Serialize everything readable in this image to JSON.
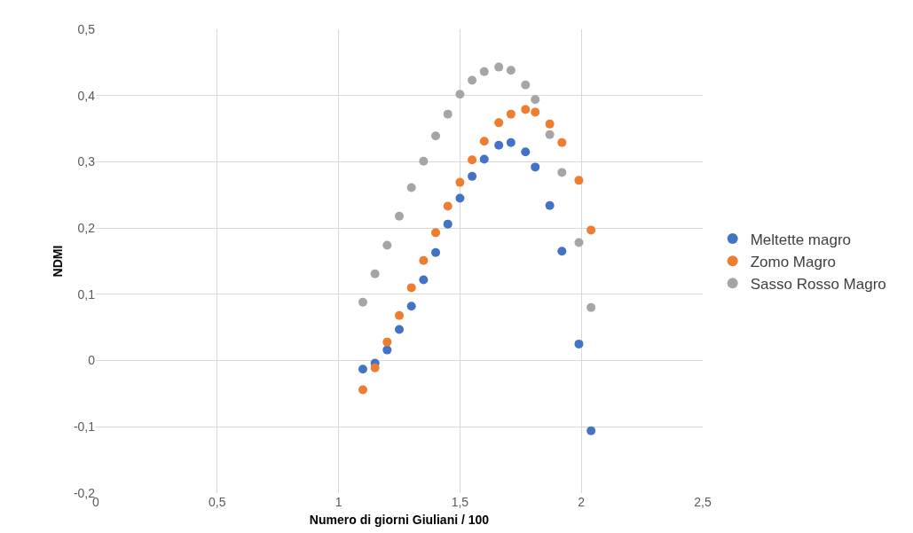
{
  "chart_data": {
    "type": "scatter",
    "xlabel": "Numero di giorni Giuliani / 100",
    "ylabel": "NDMI",
    "x": [
      1.1,
      1.15,
      1.2,
      1.25,
      1.3,
      1.35,
      1.4,
      1.45,
      1.5,
      1.55,
      1.6,
      1.66,
      1.71,
      1.77,
      1.81,
      1.87,
      1.92,
      1.99,
      2.04
    ],
    "series": [
      {
        "name": "Meltette magro",
        "color": "#4472c4",
        "values": [
          -0.013,
          -0.004,
          0.016,
          0.047,
          0.082,
          0.122,
          0.163,
          0.206,
          0.245,
          0.278,
          0.304,
          0.325,
          0.329,
          0.315,
          0.292,
          0.234,
          0.165,
          0.025,
          -0.106
        ]
      },
      {
        "name": "Zomo Magro",
        "color": "#ed7d31",
        "values": [
          -0.044,
          -0.011,
          0.028,
          0.068,
          0.11,
          0.151,
          0.193,
          0.233,
          0.269,
          0.303,
          0.331,
          0.359,
          0.372,
          0.379,
          0.375,
          0.357,
          0.329,
          0.272,
          0.197
        ]
      },
      {
        "name": "Sasso Rosso Magro",
        "color": "#a5a5a5",
        "values": [
          0.088,
          0.131,
          0.174,
          0.218,
          0.261,
          0.301,
          0.339,
          0.372,
          0.402,
          0.423,
          0.436,
          0.443,
          0.438,
          0.416,
          0.394,
          0.341,
          0.284,
          0.178,
          0.08
        ]
      }
    ],
    "xlim": [
      0,
      2.5
    ],
    "xticks": [
      0,
      {
        "value": 0.5,
        "label": "0,5"
      },
      1,
      {
        "value": 1.5,
        "label": "1,5"
      },
      2,
      {
        "value": 2.5,
        "label": "2,5"
      }
    ],
    "ylim": [
      -0.2,
      0.5
    ],
    "yticks": [
      {
        "value": -0.2,
        "label": "-0,2"
      },
      {
        "value": -0.1,
        "label": "-0,1"
      },
      0,
      {
        "value": 0.1,
        "label": "0,1"
      },
      {
        "value": 0.2,
        "label": "0,2"
      },
      {
        "value": 0.3,
        "label": "0,3"
      },
      {
        "value": 0.4,
        "label": "0,4"
      },
      {
        "value": 0.5,
        "label": "0,5"
      }
    ],
    "grid": true,
    "legend": "right",
    "marker": "circle"
  }
}
